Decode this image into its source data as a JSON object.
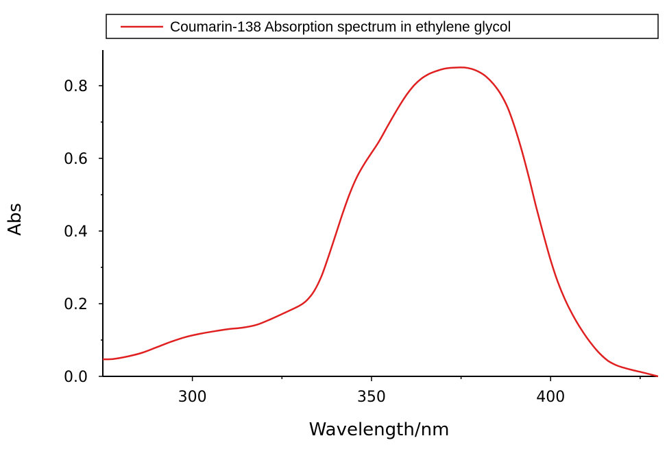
{
  "chart_data": {
    "type": "line",
    "xlabel": "Wavelength/nm",
    "ylabel": "Abs",
    "xlim": [
      275,
      430
    ],
    "ylim": [
      0.0,
      0.8
    ],
    "xticks": [
      300,
      350,
      400
    ],
    "yticks": [
      0.0,
      0.2,
      0.4,
      0.6,
      0.8
    ],
    "x_tick_labels": [
      "300",
      "350",
      "400"
    ],
    "y_tick_labels": [
      "0.0",
      "0.2",
      "0.4",
      "0.6",
      "0.8"
    ],
    "legend_placement": "top",
    "grid": false,
    "series": [
      {
        "name": "Coumarin-138 Absorption spectrum in ethylene glycol",
        "color": "#e02020",
        "x": [
          275,
          278,
          282,
          286,
          290,
          294,
          298,
          302,
          306,
          310,
          314,
          318,
          322,
          326,
          330,
          332,
          334,
          336,
          338,
          340,
          342,
          344,
          346,
          348,
          350,
          352,
          354,
          356,
          358,
          360,
          362,
          364,
          366,
          368,
          370,
          372,
          374,
          376,
          378,
          380,
          382,
          384,
          386,
          388,
          390,
          392,
          394,
          396,
          398,
          400,
          402,
          404,
          406,
          408,
          410,
          412,
          414,
          416,
          418,
          420,
          423,
          426,
          430
        ],
        "y": [
          0.047,
          0.048,
          0.055,
          0.065,
          0.08,
          0.095,
          0.108,
          0.117,
          0.124,
          0.13,
          0.134,
          0.142,
          0.158,
          0.176,
          0.195,
          0.21,
          0.235,
          0.275,
          0.33,
          0.39,
          0.45,
          0.505,
          0.55,
          0.585,
          0.615,
          0.645,
          0.68,
          0.715,
          0.748,
          0.778,
          0.802,
          0.82,
          0.832,
          0.84,
          0.846,
          0.849,
          0.85,
          0.85,
          0.846,
          0.838,
          0.825,
          0.805,
          0.778,
          0.74,
          0.685,
          0.62,
          0.545,
          0.465,
          0.39,
          0.32,
          0.26,
          0.212,
          0.172,
          0.138,
          0.108,
          0.082,
          0.06,
          0.043,
          0.032,
          0.025,
          0.017,
          0.01,
          0.0
        ]
      }
    ]
  }
}
